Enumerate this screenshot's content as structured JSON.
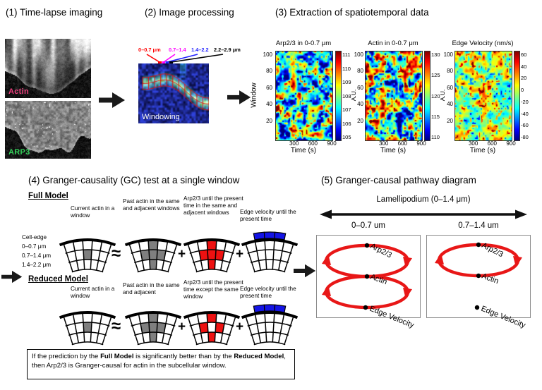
{
  "p1": {
    "title": "(1) Time-lapse imaging",
    "images": [
      {
        "label": "Actin",
        "label_color": "#ee3d7d"
      },
      {
        "label": "ARP3",
        "label_color": "#35d05a"
      }
    ]
  },
  "p2": {
    "title": "(2) Image processing",
    "windowing_label": "Windowing",
    "band_labels": [
      {
        "text": "0–0.7 μm",
        "color": "#ff0000"
      },
      {
        "text": "0.7–1.4",
        "color": "#ff00ff"
      },
      {
        "text": "1.4–2.2",
        "color": "#2222ff"
      },
      {
        "text": "2.2–2.9 μm",
        "color": "#000000"
      }
    ]
  },
  "p3": {
    "title": "(3) Extraction of spatiotemporal data"
  },
  "p4": {
    "title": "(4) Granger-causality (GC) test at a single window",
    "full_heading": "Full Model",
    "reduced_heading": "Reduced Model",
    "cell_edge_labels": [
      "Cell-edge",
      "0–0.7 μm",
      "0.7–1.4 μm",
      "1.4–2.2 μm"
    ],
    "approx": "≈",
    "plus": "+",
    "grids_full": [
      {
        "caption": "Current actin in a window",
        "color": "#7f7f7f",
        "cells": [
          [
            1,
            2
          ]
        ],
        "band": false
      },
      {
        "caption": "Past actin in the same and adjacent windows",
        "color": "#7f7f7f",
        "cells": [
          [
            0,
            2
          ],
          [
            1,
            1
          ],
          [
            1,
            2
          ],
          [
            1,
            3
          ],
          [
            2,
            2
          ]
        ],
        "band": false
      },
      {
        "caption": "Arp2/3 until the present time in the same and adjacent windows",
        "color": "#ee1111",
        "cells": [
          [
            0,
            2
          ],
          [
            1,
            1
          ],
          [
            1,
            2
          ],
          [
            1,
            3
          ],
          [
            2,
            2
          ]
        ],
        "band": false
      },
      {
        "caption": "Edge velocity until the present time",
        "color": "#1414e6",
        "cells": [],
        "band": true
      }
    ],
    "grids_reduced": [
      {
        "caption": "Current actin in a window",
        "color": "#7f7f7f",
        "cells": [
          [
            1,
            2
          ]
        ],
        "band": false
      },
      {
        "caption": "Past actin in the same and adjacent",
        "color": "#7f7f7f",
        "cells": [
          [
            0,
            2
          ],
          [
            1,
            1
          ],
          [
            1,
            2
          ],
          [
            1,
            3
          ],
          [
            2,
            2
          ]
        ],
        "band": false
      },
      {
        "caption": "Arp2/3 until the present time except the same window",
        "color": "#ee1111",
        "cells": [
          [
            0,
            2
          ],
          [
            1,
            1
          ],
          [
            1,
            3
          ],
          [
            2,
            2
          ]
        ],
        "band": false
      },
      {
        "caption": "Edge velocity until the present time",
        "color": "#1414e6",
        "cells": [],
        "band": true
      }
    ],
    "note": [
      {
        "text": "If the prediction by the ",
        "bold": false
      },
      {
        "text": "Full Model",
        "bold": true
      },
      {
        "text": " is significantly better than by the ",
        "bold": false
      },
      {
        "text": "Reduced Model",
        "bold": true
      },
      {
        "text": ", then Arp2/3 is Granger-causal for actin in the subcellular window.",
        "bold": false
      }
    ]
  },
  "p5": {
    "title": "(5) Granger-causal pathway diagram",
    "lamellipodium": "Lamellipodium (0–1.4 μm)",
    "boxes": [
      {
        "label": "0–0.7 um",
        "nodes": [
          "Arp2/3",
          "Actin",
          "Edge Velocity"
        ],
        "loops": [
          [
            "Arp2/3",
            "Actin"
          ],
          [
            "Actin",
            "Edge Velocity"
          ]
        ]
      },
      {
        "label": "0.7–1.4 um",
        "nodes": [
          "Arp2/3",
          "Actin",
          "Edge Velocity"
        ],
        "loops": [
          [
            "Arp2/3",
            "Actin"
          ]
        ]
      }
    ]
  },
  "chart_data": [
    {
      "type": "heatmap",
      "title": "Arp2/3 in 0-0.7 μm",
      "xlabel": "Time (s)",
      "ylabel": "Window",
      "x_ticks": [
        300,
        600,
        900
      ],
      "y_ticks": [
        100,
        80,
        60,
        40,
        20
      ],
      "x_range": [
        0,
        900
      ],
      "y_range": [
        1,
        105
      ],
      "colorbar_label": "A.U.",
      "colorbar_ticks": [
        111,
        110,
        109,
        108,
        107,
        106,
        105
      ],
      "colormap": "jet",
      "description": "Spatiotemporal map of Arp2/3 intensity fluctuations per edge window over time; values span ~105-111 A.U., mostly cyan/blue with scattered warm patches"
    },
    {
      "type": "heatmap",
      "title": "Actin in 0-0.7 μm",
      "xlabel": "Time (s)",
      "ylabel": "Window",
      "x_ticks": [
        300,
        600,
        900
      ],
      "y_ticks": [
        100,
        80,
        60,
        40,
        20
      ],
      "x_range": [
        0,
        900
      ],
      "y_range": [
        1,
        105
      ],
      "colorbar_label": "A.U.",
      "colorbar_ticks": [
        130,
        125,
        120,
        115,
        110
      ],
      "colormap": "jet",
      "description": "Spatiotemporal map of actin intensity fluctuations; values span ~110-130 A.U., warmer (orange/red) toward lower-left windows"
    },
    {
      "type": "heatmap",
      "title": "Edge Velocity (nm/s)",
      "xlabel": "Time (s)",
      "ylabel": "Window",
      "x_ticks": [
        300,
        600,
        900
      ],
      "y_ticks": [
        100,
        80,
        60,
        40,
        20
      ],
      "x_range": [
        0,
        900
      ],
      "y_range": [
        1,
        105
      ],
      "colorbar_label": "",
      "colorbar_ticks": [
        60,
        40,
        20,
        0,
        -20,
        -40,
        -60,
        -80
      ],
      "colormap": "jet",
      "description": "Spatiotemporal map of edge velocity; values span ~-80 to 60 nm/s, mostly green/yellow near 0 with sparse red/blue extremes"
    }
  ]
}
